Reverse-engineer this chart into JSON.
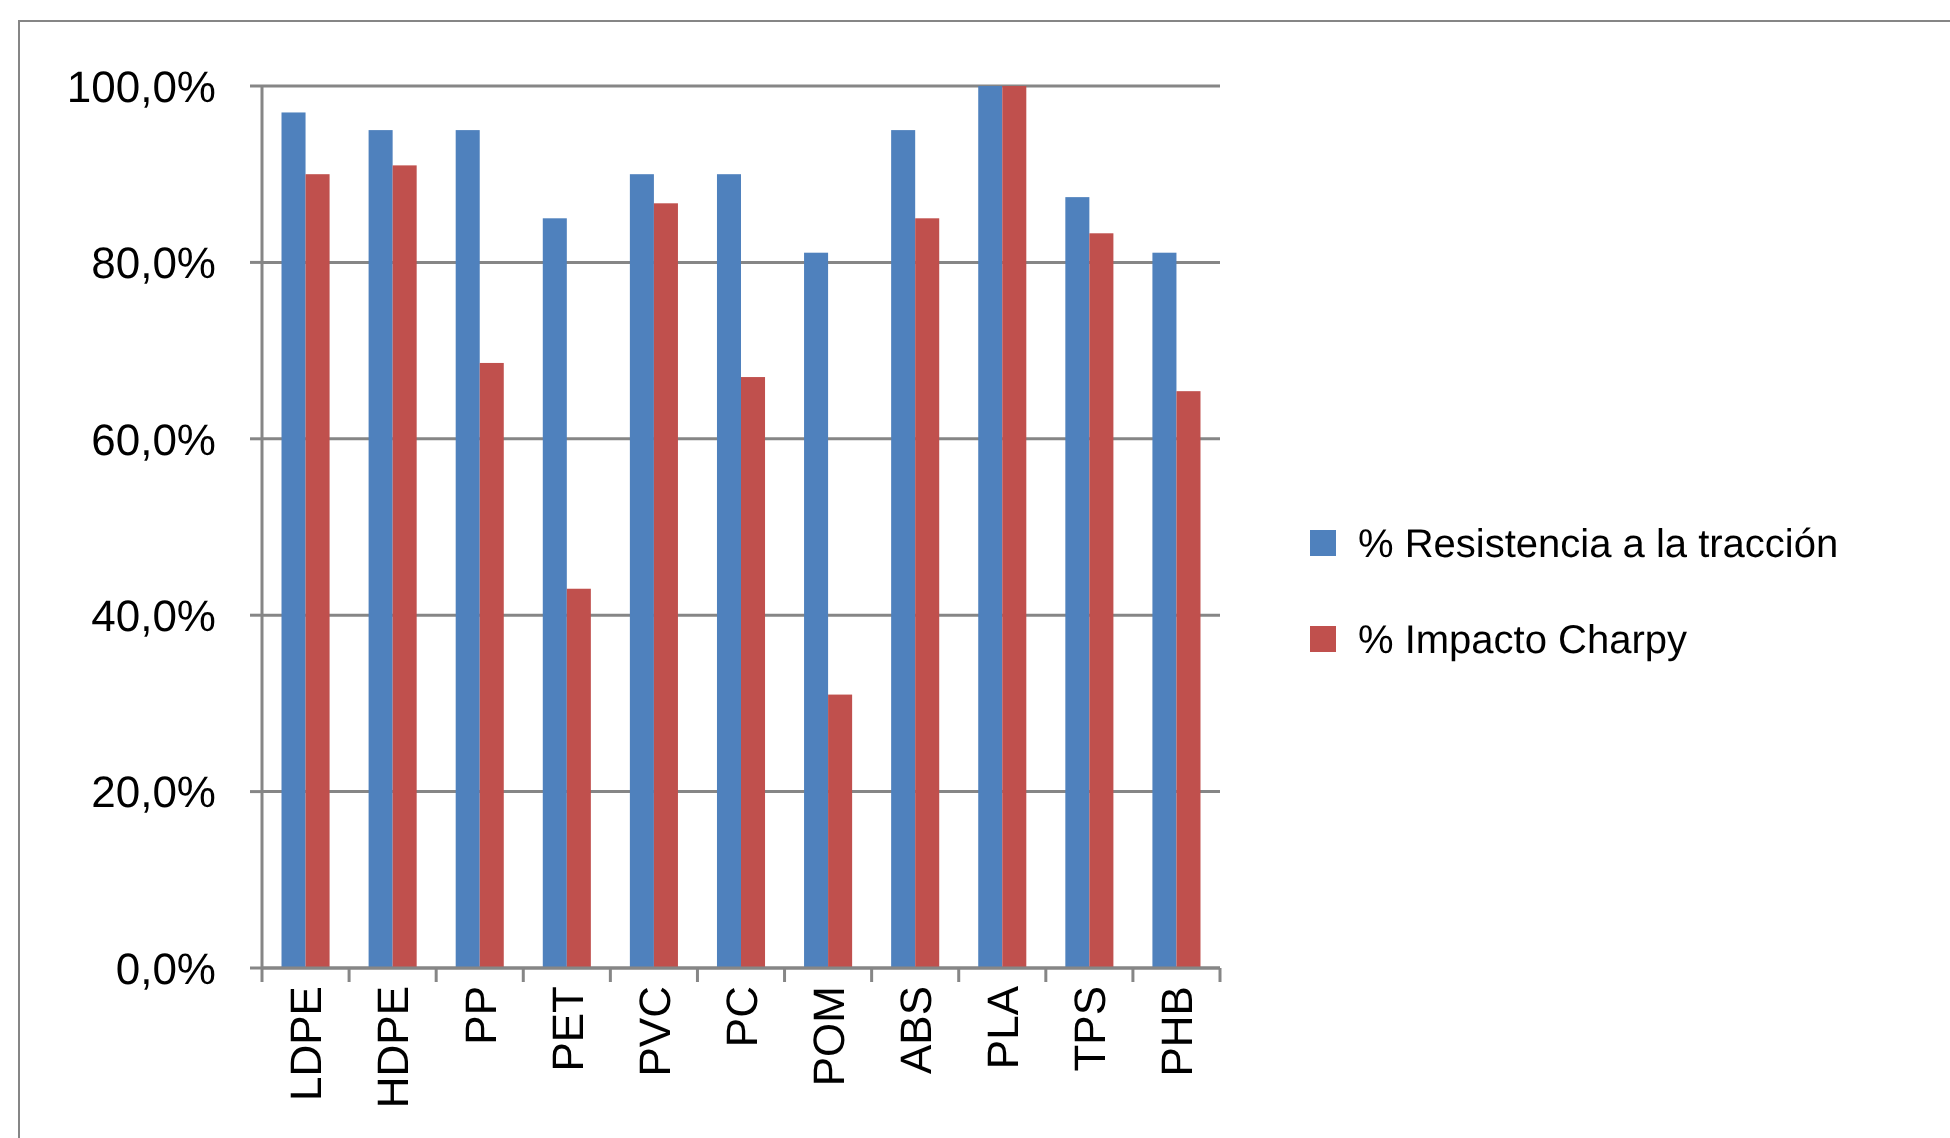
{
  "chart_data": {
    "type": "bar",
    "categories": [
      "LDPE",
      "HDPE",
      "PP",
      "PET",
      "PVC",
      "PC",
      "POM",
      "ABS",
      "PLA",
      "TPS",
      "PHB"
    ],
    "series": [
      {
        "name": "% Resistencia a la tracción",
        "color": "#4f81bd",
        "values": [
          97,
          95,
          95,
          85,
          90,
          90,
          81.1,
          95,
          100,
          87.4,
          81.1
        ]
      },
      {
        "name": "% Impacto Charpy",
        "color": "#c0504d",
        "values": [
          90,
          91,
          68.6,
          43,
          86.7,
          67,
          31,
          85,
          100,
          83.3,
          65.4
        ]
      }
    ],
    "ylim": [
      0,
      100
    ],
    "yticks": [
      {
        "value": 0,
        "label": "0,0%"
      },
      {
        "value": 20,
        "label": "20,0%"
      },
      {
        "value": 40,
        "label": "40,0%"
      },
      {
        "value": 60,
        "label": "60,0%"
      },
      {
        "value": 80,
        "label": "80,0%"
      },
      {
        "value": 100,
        "label": "100,0%"
      }
    ],
    "grid": "y",
    "legend": "right"
  }
}
